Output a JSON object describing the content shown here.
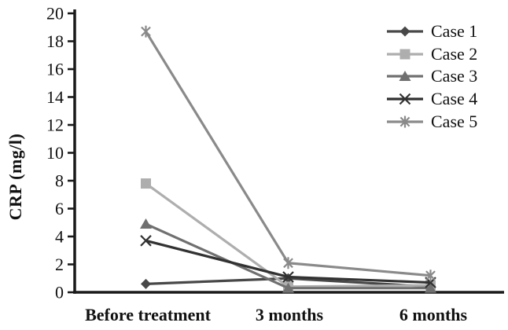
{
  "figure": {
    "background": "#ffffff",
    "text_color": "#111111",
    "axis_color": "#1a1a1a"
  },
  "chart_data": {
    "type": "line",
    "title": "",
    "xlabel": "",
    "ylabel": "CRP (mg/l)",
    "categories": [
      "Before treatment",
      "3 months",
      "6 months"
    ],
    "ylim": [
      0,
      20
    ],
    "ytick_step": 2,
    "grid": false,
    "legend_position": "top-right",
    "series": [
      {
        "name": "Case 1",
        "marker": "diamond",
        "color": "#484848",
        "values": [
          0.6,
          1.0,
          0.4
        ]
      },
      {
        "name": "Case 2",
        "marker": "square",
        "color": "#aeaeae",
        "values": [
          7.8,
          0.4,
          0.5
        ]
      },
      {
        "name": "Case 3",
        "marker": "triangle",
        "color": "#707070",
        "values": [
          4.9,
          0.3,
          0.3
        ]
      },
      {
        "name": "Case 4",
        "marker": "x",
        "color": "#323232",
        "values": [
          3.7,
          1.1,
          0.7
        ]
      },
      {
        "name": "Case 5",
        "marker": "asterisk",
        "color": "#8a8a8a",
        "values": [
          18.7,
          2.1,
          1.2
        ]
      }
    ]
  }
}
